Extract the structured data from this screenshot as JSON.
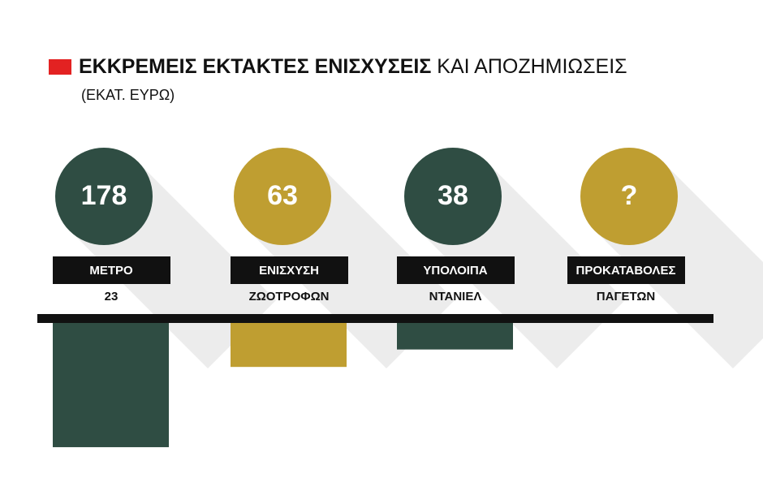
{
  "chart_data": {
    "type": "bar",
    "title": [
      "ΕΚΚΡΕΜΕΙΣ ΕΚΤΑΚΤΕΣ ΕΝΙΣΧΥΣΕΙΣ",
      "ΚΑΙ ΑΠΟΖΗΜΙΩΣΕΙΣ"
    ],
    "subtitle": "(ΕΚΑΤ. ΕΥΡΩ)",
    "categories": [
      [
        "ΜΕΤΡΟ",
        "23"
      ],
      [
        "ΕΝΙΣΧΥΣΗ",
        "ΖΩΟΤΡΟΦΩΝ"
      ],
      [
        "ΥΠΟΛΟΙΠΑ",
        "ΝΤΑΝΙΕΛ"
      ],
      [
        "ΠΡΟΚΑΤΑΒΟΛΕΣ",
        "ΠΑΓΕΤΩΝ"
      ]
    ],
    "values": [
      178,
      63,
      38,
      null
    ],
    "value_labels": [
      "178",
      "63",
      "38",
      "?"
    ],
    "colors": [
      "#2f4d43",
      "#bf9e31",
      "#2f4d43",
      "#bf9e31"
    ]
  }
}
